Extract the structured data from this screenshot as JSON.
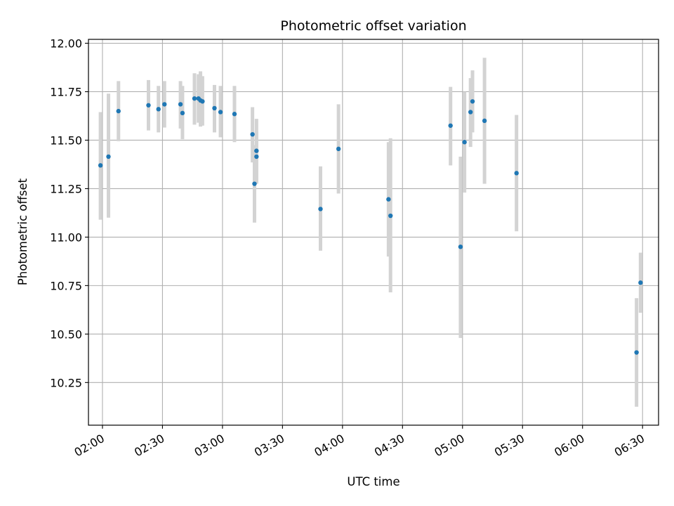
{
  "chart_data": {
    "type": "scatter",
    "title": "Photometric offset variation",
    "xlabel": "UTC time",
    "ylabel": "Photometric offset",
    "xlim": [
      "01:53",
      "06:38"
    ],
    "ylim": [
      10.03,
      12.02
    ],
    "x_ticks": [
      "02:00",
      "02:30",
      "03:00",
      "03:30",
      "04:00",
      "04:30",
      "05:00",
      "05:30",
      "06:00",
      "06:30"
    ],
    "y_ticks": [
      "10.25",
      "10.50",
      "10.75",
      "11.00",
      "11.25",
      "11.50",
      "11.75",
      "12.00"
    ],
    "grid": true,
    "colors": {
      "points": "#1f77b4",
      "error_bars": "#d3d3d3",
      "grid": "#b0b0b0"
    },
    "points": [
      {
        "time": "01:59",
        "y": 11.37,
        "err_low": 11.09,
        "err_high": 11.645
      },
      {
        "time": "02:03",
        "y": 11.415,
        "err_low": 11.1,
        "err_high": 11.74
      },
      {
        "time": "02:08",
        "y": 11.65,
        "err_low": 11.495,
        "err_high": 11.805
      },
      {
        "time": "02:23",
        "y": 11.68,
        "err_low": 11.55,
        "err_high": 11.81
      },
      {
        "time": "02:28",
        "y": 11.66,
        "err_low": 11.54,
        "err_high": 11.78
      },
      {
        "time": "02:31",
        "y": 11.685,
        "err_low": 11.565,
        "err_high": 11.805
      },
      {
        "time": "02:39",
        "y": 11.685,
        "err_low": 11.56,
        "err_high": 11.805
      },
      {
        "time": "02:40",
        "y": 11.64,
        "err_low": 11.505,
        "err_high": 11.78
      },
      {
        "time": "02:46",
        "y": 11.715,
        "err_low": 11.58,
        "err_high": 11.845
      },
      {
        "time": "02:48",
        "y": 11.715,
        "err_low": 11.59,
        "err_high": 11.84
      },
      {
        "time": "02:49",
        "y": 11.705,
        "err_low": 11.57,
        "err_high": 11.855
      },
      {
        "time": "02:50",
        "y": 11.7,
        "err_low": 11.575,
        "err_high": 11.83
      },
      {
        "time": "02:56",
        "y": 11.665,
        "err_low": 11.54,
        "err_high": 11.785
      },
      {
        "time": "02:59",
        "y": 11.645,
        "err_low": 11.515,
        "err_high": 11.78
      },
      {
        "time": "03:06",
        "y": 11.635,
        "err_low": 11.49,
        "err_high": 11.78
      },
      {
        "time": "03:15",
        "y": 11.53,
        "err_low": 11.385,
        "err_high": 11.67
      },
      {
        "time": "03:16",
        "y": 11.275,
        "err_low": 11.075,
        "err_high": 11.475
      },
      {
        "time": "03:17",
        "y": 11.415,
        "err_low": 11.28,
        "err_high": 11.545
      },
      {
        "time": "03:17",
        "y": 11.445,
        "err_low": 11.275,
        "err_high": 11.61
      },
      {
        "time": "03:49",
        "y": 11.145,
        "err_low": 10.93,
        "err_high": 11.365
      },
      {
        "time": "03:58",
        "y": 11.455,
        "err_low": 11.225,
        "err_high": 11.685
      },
      {
        "time": "04:23",
        "y": 11.195,
        "err_low": 10.9,
        "err_high": 11.49
      },
      {
        "time": "04:24",
        "y": 11.11,
        "err_low": 10.715,
        "err_high": 11.51
      },
      {
        "time": "04:54",
        "y": 11.575,
        "err_low": 11.37,
        "err_high": 11.775
      },
      {
        "time": "04:59",
        "y": 10.95,
        "err_low": 10.48,
        "err_high": 11.415
      },
      {
        "time": "05:01",
        "y": 11.49,
        "err_low": 11.23,
        "err_high": 11.75
      },
      {
        "time": "05:04",
        "y": 11.645,
        "err_low": 11.465,
        "err_high": 11.82
      },
      {
        "time": "05:05",
        "y": 11.7,
        "err_low": 11.54,
        "err_high": 11.86
      },
      {
        "time": "05:11",
        "y": 11.6,
        "err_low": 11.275,
        "err_high": 11.925
      },
      {
        "time": "05:27",
        "y": 11.33,
        "err_low": 11.03,
        "err_high": 11.63
      },
      {
        "time": "06:27",
        "y": 10.405,
        "err_low": 10.125,
        "err_high": 10.685
      },
      {
        "time": "06:29",
        "y": 10.765,
        "err_low": 10.61,
        "err_high": 10.92
      }
    ]
  }
}
